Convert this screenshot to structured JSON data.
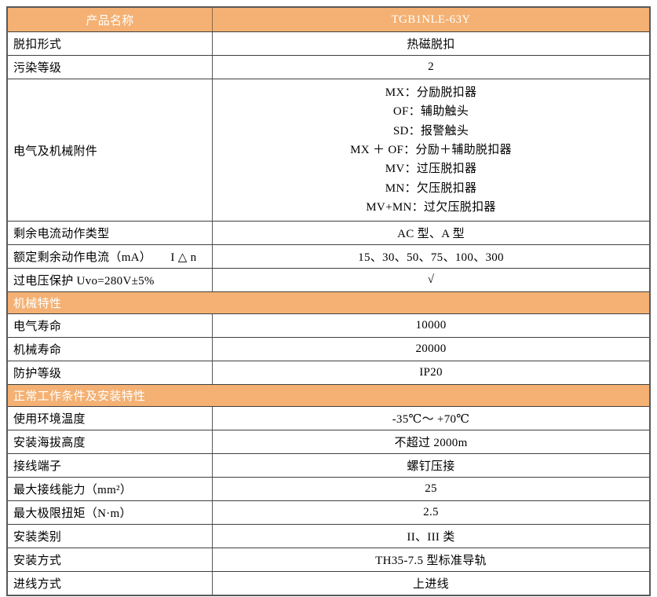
{
  "colors": {
    "accent": "#F4B173",
    "header_text": "#FFFFFF",
    "border": "#595959",
    "body_text": "#000000"
  },
  "header": {
    "col1": "产品名称",
    "col2": "TGB1NLE-63Y"
  },
  "rows_top": [
    {
      "label": "脱扣形式",
      "value": "热磁脱扣"
    },
    {
      "label": "污染等级",
      "value": "2"
    },
    {
      "label": "电气及机械附件",
      "value_lines": [
        "MX：分励脱扣器",
        "OF：辅助触头",
        "SD：报警触头",
        "MX ＋ OF：分励＋辅助脱扣器",
        "MV：过压脱扣器",
        "MN：欠压脱扣器",
        "MV+MN：过欠压脱扣器"
      ]
    },
    {
      "label": "剩余电流动作类型",
      "value": "AC 型、A 型"
    },
    {
      "label": "额定剩余动作电流（mA）      I △ n",
      "value": "15、30、50、75、100、300"
    },
    {
      "label": "过电压保护 Uvo=280V±5%",
      "value": "√"
    }
  ],
  "section_mechanical": {
    "title": "机械特性",
    "rows": [
      {
        "label": "电气寿命",
        "value": "10000"
      },
      {
        "label": "机械寿命",
        "value": "20000"
      },
      {
        "label": "防护等级",
        "value": "IP20"
      }
    ]
  },
  "section_installation": {
    "title": "正常工作条件及安装特性",
    "rows": [
      {
        "label": "使用环境温度",
        "value": "-35℃～ +70℃"
      },
      {
        "label": "安装海拔高度",
        "value": "不超过 2000m"
      },
      {
        "label": "接线端子",
        "value": "螺钉压接"
      },
      {
        "label": "最大接线能力（mm²）",
        "value": "25"
      },
      {
        "label": "最大极限扭矩（N·m）",
        "value": "2.5"
      },
      {
        "label": "安装类别",
        "value": "II、III 类"
      },
      {
        "label": "安装方式",
        "value": "TH35-7.5 型标准导轨"
      },
      {
        "label": "进线方式",
        "value": "上进线"
      }
    ]
  }
}
